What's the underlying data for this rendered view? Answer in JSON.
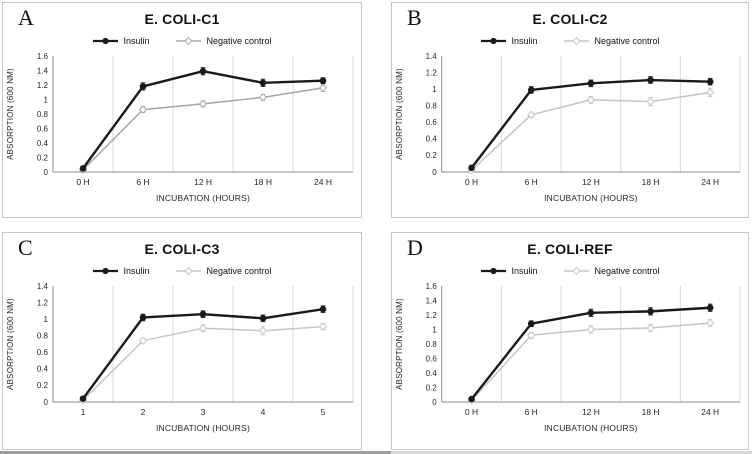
{
  "figure": {
    "xlabel": "INCUBATION (HOURS)",
    "ylabel": "ABSORPTION (600 NM)",
    "legend": [
      "Insulin",
      "Negative control"
    ],
    "colors": {
      "insulin": "#1a1a1a",
      "negative_control_A": "#a6a6a6",
      "negative_control_other": "#c6c6c6",
      "gridline": "#d9d9d9",
      "axis": "#8c8c8c"
    }
  },
  "chart_data": [
    {
      "panel": "A",
      "type": "line",
      "title": "E. COLI-C1",
      "categories": [
        "0 H",
        "6 H",
        "12 H",
        "18 H",
        "24 H"
      ],
      "xlabel": "INCUBATION (HOURS)",
      "ylabel": "ABSORPTION (600 NM)",
      "ylim": [
        0,
        1.6
      ],
      "ytick_step": 0.2,
      "grid": "vertical-between-categories",
      "legend_position": "top",
      "series": [
        {
          "name": "Insulin",
          "marker": "filled-circle",
          "color": "#1a1a1a",
          "values": [
            0.05,
            1.18,
            1.39,
            1.23,
            1.26
          ],
          "errors": [
            0.03,
            0.05,
            0.05,
            0.05,
            0.04
          ]
        },
        {
          "name": "Negative control",
          "marker": "open-diamond",
          "color": "#a6a6a6",
          "values": [
            0.03,
            0.86,
            0.94,
            1.03,
            1.16
          ],
          "errors": [
            0.02,
            0.04,
            0.04,
            0.04,
            0.05
          ]
        }
      ]
    },
    {
      "panel": "B",
      "type": "line",
      "title": "E. COLI-C2",
      "categories": [
        "0 H",
        "6 H",
        "12 H",
        "18 H",
        "24 H"
      ],
      "xlabel": "INCUBATION (HOURS)",
      "ylabel": "ABSORPTION (600 NM)",
      "ylim": [
        0,
        1.4
      ],
      "ytick_step": 0.2,
      "grid": "vertical-between-categories",
      "legend_position": "top",
      "series": [
        {
          "name": "Insulin",
          "marker": "filled-circle",
          "color": "#1a1a1a",
          "values": [
            0.05,
            0.99,
            1.07,
            1.11,
            1.09
          ],
          "errors": [
            0.02,
            0.04,
            0.04,
            0.04,
            0.04
          ]
        },
        {
          "name": "Negative control",
          "marker": "open-diamond",
          "color": "#c4c4c4",
          "values": [
            0.02,
            0.69,
            0.87,
            0.85,
            0.96
          ],
          "errors": [
            0.02,
            0.03,
            0.04,
            0.05,
            0.05
          ]
        }
      ]
    },
    {
      "panel": "C",
      "type": "line",
      "title": "E. COLI-C3",
      "categories": [
        "1",
        "2",
        "3",
        "4",
        "5"
      ],
      "xlabel": "INCUBATION (HOURS)",
      "ylabel": "ABSORPTION (600 NM)",
      "ylim": [
        0,
        1.4
      ],
      "ytick_step": 0.2,
      "grid": "vertical-between-categories",
      "legend_position": "top",
      "series": [
        {
          "name": "Insulin",
          "marker": "filled-circle",
          "color": "#1a1a1a",
          "values": [
            0.04,
            1.02,
            1.06,
            1.01,
            1.12
          ],
          "errors": [
            0.02,
            0.04,
            0.04,
            0.04,
            0.04
          ]
        },
        {
          "name": "Negative control",
          "marker": "open-diamond",
          "color": "#c6c6c6",
          "values": [
            0.02,
            0.74,
            0.89,
            0.86,
            0.91
          ],
          "errors": [
            0.02,
            0.03,
            0.04,
            0.05,
            0.04
          ]
        }
      ]
    },
    {
      "panel": "D",
      "type": "line",
      "title": "E. COLI-REF",
      "categories": [
        "0 H",
        "6 H",
        "12 H",
        "18 H",
        "24 H"
      ],
      "xlabel": "INCUBATION (HOURS)",
      "ylabel": "ABSORPTION (600 NM)",
      "ylim": [
        0,
        1.6
      ],
      "ytick_step": 0.2,
      "grid": "vertical-between-categories",
      "legend_position": "top",
      "series": [
        {
          "name": "Insulin",
          "marker": "filled-circle",
          "color": "#1a1a1a",
          "values": [
            0.04,
            1.08,
            1.23,
            1.25,
            1.3
          ],
          "errors": [
            0.02,
            0.04,
            0.05,
            0.05,
            0.05
          ]
        },
        {
          "name": "Negative control",
          "marker": "open-diamond",
          "color": "#c6c6c6",
          "values": [
            0.02,
            0.92,
            1.0,
            1.02,
            1.09
          ],
          "errors": [
            0.02,
            0.04,
            0.05,
            0.05,
            0.05
          ]
        }
      ]
    }
  ]
}
